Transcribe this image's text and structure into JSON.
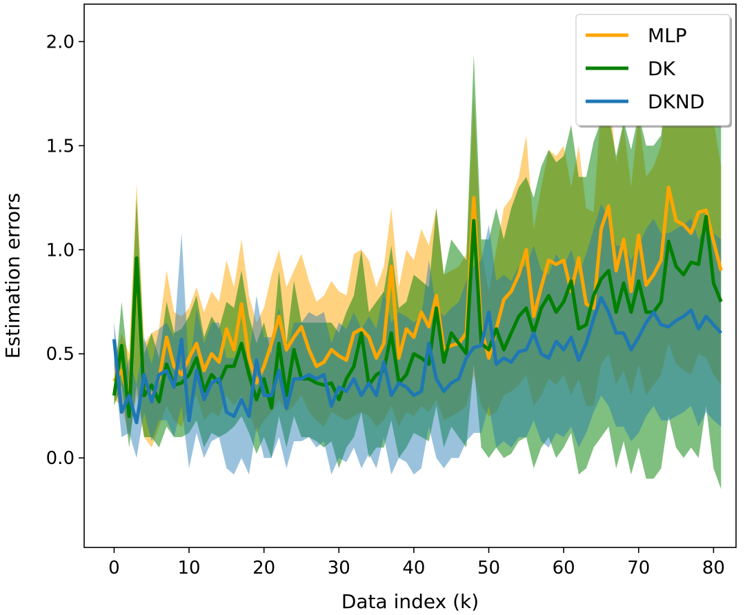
{
  "chart_data": {
    "type": "line",
    "xlabel": "Data index (k)",
    "ylabel": "Estimation errors",
    "xlim": [
      -4,
      83
    ],
    "ylim": [
      -0.43,
      2.18
    ],
    "xticks": [
      0,
      10,
      20,
      30,
      40,
      50,
      60,
      70,
      80
    ],
    "yticks": [
      0.0,
      0.5,
      1.0,
      1.5,
      2.0
    ],
    "grid": false,
    "legend": {
      "position": "top-right"
    },
    "x": [
      0,
      1,
      2,
      3,
      4,
      5,
      6,
      7,
      8,
      9,
      10,
      11,
      12,
      13,
      14,
      15,
      16,
      17,
      18,
      19,
      20,
      21,
      22,
      23,
      24,
      25,
      26,
      27,
      28,
      29,
      30,
      31,
      32,
      33,
      34,
      35,
      36,
      37,
      38,
      39,
      40,
      41,
      42,
      43,
      44,
      45,
      46,
      47,
      48,
      49,
      50,
      51,
      52,
      53,
      54,
      55,
      56,
      57,
      58,
      59,
      60,
      61,
      62,
      63,
      64,
      65,
      66,
      67,
      68,
      69,
      70,
      71,
      72,
      73,
      74,
      75,
      76,
      77,
      78,
      79,
      80,
      81
    ],
    "series": [
      {
        "name": "MLP",
        "color": "#ffa500",
        "band_opacity": 0.5,
        "values": [
          0.37,
          0.42,
          0.28,
          0.9,
          0.33,
          0.3,
          0.38,
          0.58,
          0.44,
          0.4,
          0.48,
          0.55,
          0.42,
          0.5,
          0.46,
          0.62,
          0.52,
          0.74,
          0.48,
          0.36,
          0.44,
          0.55,
          0.68,
          0.52,
          0.58,
          0.63,
          0.52,
          0.44,
          0.46,
          0.52,
          0.49,
          0.47,
          0.6,
          0.62,
          0.58,
          0.48,
          0.55,
          0.92,
          0.48,
          0.62,
          0.58,
          0.7,
          0.63,
          0.78,
          0.52,
          0.54,
          0.55,
          0.6,
          1.25,
          0.62,
          0.48,
          0.62,
          0.76,
          0.8,
          0.88,
          1.0,
          0.68,
          0.82,
          0.95,
          0.93,
          0.95,
          0.8,
          0.96,
          0.74,
          0.72,
          1.1,
          1.21,
          0.9,
          1.05,
          0.8,
          1.07,
          0.83,
          0.88,
          0.95,
          1.3,
          1.14,
          1.12,
          1.08,
          1.18,
          1.19,
          1.04,
          0.9
        ],
        "lower": [
          0.28,
          0.25,
          0.1,
          0.3,
          0.1,
          0.05,
          0.15,
          0.25,
          0.18,
          0.15,
          0.25,
          0.3,
          0.18,
          0.22,
          0.2,
          0.3,
          0.25,
          0.3,
          0.22,
          0.12,
          0.18,
          0.22,
          0.28,
          0.22,
          0.25,
          0.3,
          0.22,
          0.18,
          0.15,
          0.22,
          0.2,
          0.18,
          0.2,
          0.22,
          0.2,
          0.15,
          0.18,
          0.25,
          0.15,
          0.22,
          0.2,
          0.25,
          0.22,
          0.28,
          0.18,
          0.2,
          0.22,
          0.25,
          0.4,
          0.25,
          0.2,
          0.22,
          0.3,
          0.32,
          0.35,
          0.4,
          0.25,
          0.3,
          0.38,
          0.35,
          0.4,
          0.3,
          0.38,
          0.25,
          0.25,
          0.45,
          0.5,
          0.35,
          0.42,
          0.3,
          0.45,
          0.3,
          0.35,
          0.4,
          0.55,
          0.45,
          0.42,
          0.4,
          0.5,
          0.48,
          0.4,
          0.35
        ],
        "upper": [
          0.45,
          0.6,
          0.5,
          1.32,
          0.55,
          0.6,
          0.62,
          0.9,
          0.7,
          0.68,
          0.72,
          0.82,
          0.7,
          0.8,
          0.75,
          0.95,
          0.82,
          1.05,
          0.78,
          0.65,
          0.72,
          0.88,
          1.0,
          0.82,
          0.9,
          0.98,
          0.85,
          0.75,
          0.78,
          0.85,
          0.8,
          0.78,
          0.98,
          1.0,
          0.95,
          0.82,
          0.92,
          1.2,
          0.82,
          1.0,
          0.95,
          1.1,
          1.02,
          1.2,
          0.88,
          0.9,
          0.92,
          0.98,
          1.75,
          1.0,
          0.8,
          1.0,
          1.2,
          1.25,
          1.35,
          1.55,
          1.1,
          1.3,
          1.48,
          1.45,
          1.5,
          1.3,
          1.5,
          1.2,
          1.18,
          1.7,
          1.78,
          1.42,
          1.6,
          1.3,
          1.65,
          1.35,
          1.4,
          1.5,
          1.95,
          1.75,
          1.72,
          1.68,
          1.8,
          1.82,
          1.62,
          1.4
        ]
      },
      {
        "name": "DK",
        "color": "#008000",
        "band_opacity": 0.5,
        "values": [
          0.3,
          0.54,
          0.2,
          0.96,
          0.3,
          0.35,
          0.27,
          0.45,
          0.35,
          0.36,
          0.4,
          0.48,
          0.32,
          0.4,
          0.36,
          0.44,
          0.44,
          0.55,
          0.4,
          0.28,
          0.38,
          0.24,
          0.55,
          0.3,
          0.52,
          0.38,
          0.38,
          0.36,
          0.35,
          0.36,
          0.28,
          0.38,
          0.44,
          0.6,
          0.35,
          0.4,
          0.42,
          0.6,
          0.36,
          0.4,
          0.5,
          0.48,
          0.45,
          0.72,
          0.46,
          0.6,
          0.55,
          0.5,
          1.14,
          0.55,
          0.52,
          0.62,
          0.52,
          0.6,
          0.68,
          0.72,
          0.6,
          0.72,
          0.78,
          0.7,
          0.75,
          0.85,
          0.62,
          0.64,
          0.78,
          0.86,
          0.9,
          0.7,
          0.84,
          0.7,
          0.85,
          0.7,
          0.7,
          0.75,
          1.04,
          0.92,
          0.88,
          0.94,
          0.93,
          1.16,
          0.84,
          0.75
        ],
        "lower": [
          0.25,
          0.35,
          0.05,
          0.35,
          0.1,
          0.1,
          0.05,
          0.15,
          0.1,
          0.1,
          0.12,
          0.18,
          0.05,
          0.12,
          0.1,
          0.12,
          0.15,
          0.2,
          0.12,
          0.02,
          0.1,
          0.0,
          0.2,
          0.05,
          0.2,
          0.1,
          0.1,
          0.08,
          0.05,
          0.08,
          -0.05,
          0.05,
          0.1,
          0.22,
          0.0,
          0.05,
          0.05,
          0.18,
          0.0,
          0.05,
          0.12,
          0.1,
          0.08,
          0.25,
          0.05,
          0.15,
          0.1,
          0.05,
          0.45,
          0.05,
          0.0,
          0.05,
          0.0,
          0.02,
          0.08,
          0.1,
          -0.05,
          0.05,
          0.1,
          0.0,
          0.05,
          0.12,
          -0.08,
          -0.05,
          0.05,
          0.1,
          0.15,
          -0.05,
          0.08,
          -0.08,
          0.05,
          -0.1,
          -0.1,
          -0.05,
          0.2,
          0.05,
          0.0,
          0.05,
          0.0,
          0.25,
          -0.05,
          -0.15
        ],
        "upper": [
          0.35,
          0.75,
          0.4,
          1.25,
          0.5,
          0.6,
          0.48,
          0.75,
          0.6,
          0.62,
          0.68,
          0.78,
          0.58,
          0.68,
          0.62,
          0.75,
          0.72,
          0.9,
          0.68,
          0.55,
          0.65,
          0.5,
          0.9,
          0.55,
          0.85,
          0.65,
          0.65,
          0.65,
          0.65,
          0.65,
          0.6,
          0.7,
          0.78,
          1.0,
          0.7,
          0.75,
          0.8,
          1.02,
          0.72,
          0.75,
          0.88,
          0.85,
          0.82,
          1.2,
          0.88,
          1.05,
          1.0,
          0.95,
          1.94,
          1.05,
          1.05,
          1.2,
          1.05,
          1.2,
          1.3,
          1.35,
          1.25,
          1.4,
          1.48,
          1.42,
          1.45,
          1.6,
          1.35,
          1.35,
          1.52,
          1.62,
          1.65,
          1.45,
          1.62,
          1.48,
          1.65,
          1.5,
          1.5,
          1.55,
          1.9,
          1.8,
          1.75,
          1.82,
          1.85,
          2.05,
          1.72,
          1.6
        ]
      },
      {
        "name": "DKND",
        "color": "#1f77b4",
        "band_opacity": 0.45,
        "values": [
          0.57,
          0.22,
          0.3,
          0.17,
          0.4,
          0.27,
          0.4,
          0.42,
          0.34,
          0.57,
          0.18,
          0.42,
          0.28,
          0.36,
          0.38,
          0.22,
          0.2,
          0.28,
          0.2,
          0.47,
          0.3,
          0.3,
          0.42,
          0.24,
          0.38,
          0.38,
          0.4,
          0.38,
          0.4,
          0.25,
          0.34,
          0.32,
          0.38,
          0.3,
          0.36,
          0.3,
          0.46,
          0.3,
          0.36,
          0.34,
          0.3,
          0.32,
          0.55,
          0.38,
          0.32,
          0.36,
          0.38,
          0.48,
          0.53,
          0.54,
          0.7,
          0.45,
          0.48,
          0.46,
          0.51,
          0.52,
          0.6,
          0.5,
          0.48,
          0.56,
          0.52,
          0.58,
          0.47,
          0.55,
          0.67,
          0.77,
          0.7,
          0.6,
          0.6,
          0.52,
          0.58,
          0.65,
          0.7,
          0.64,
          0.63,
          0.66,
          0.68,
          0.71,
          0.62,
          0.68,
          0.64,
          0.6
        ],
        "lower": [
          0.45,
          0.1,
          0.12,
          0.0,
          0.22,
          0.08,
          0.18,
          0.18,
          0.1,
          0.25,
          -0.05,
          0.12,
          0.0,
          0.08,
          0.1,
          -0.05,
          -0.08,
          0.0,
          -0.08,
          0.15,
          0.0,
          0.0,
          0.1,
          -0.05,
          0.08,
          0.08,
          0.1,
          0.05,
          0.08,
          -0.08,
          0.0,
          -0.02,
          0.05,
          -0.05,
          0.02,
          -0.05,
          0.1,
          -0.08,
          0.0,
          -0.02,
          -0.08,
          -0.05,
          0.15,
          0.0,
          -0.05,
          0.0,
          0.0,
          0.08,
          0.12,
          0.12,
          0.25,
          0.05,
          0.08,
          0.05,
          0.1,
          0.1,
          0.18,
          0.08,
          0.05,
          0.12,
          0.1,
          0.15,
          0.05,
          0.12,
          0.22,
          0.3,
          0.25,
          0.15,
          0.15,
          0.08,
          0.12,
          0.2,
          0.25,
          0.18,
          0.18,
          0.2,
          0.22,
          0.25,
          0.15,
          0.22,
          0.18,
          0.15
        ],
        "upper": [
          0.65,
          0.35,
          0.48,
          0.35,
          0.58,
          0.45,
          0.62,
          0.65,
          0.58,
          1.08,
          0.4,
          0.72,
          0.55,
          0.65,
          0.65,
          0.48,
          0.48,
          0.55,
          0.48,
          0.78,
          0.58,
          0.58,
          0.72,
          0.5,
          0.65,
          0.65,
          0.7,
          0.68,
          0.7,
          0.55,
          0.65,
          0.62,
          0.7,
          0.62,
          0.68,
          0.62,
          0.8,
          0.65,
          0.7,
          0.68,
          0.65,
          0.68,
          0.95,
          0.72,
          0.68,
          0.72,
          0.75,
          0.85,
          0.92,
          0.95,
          1.12,
          0.85,
          0.88,
          0.85,
          0.92,
          0.92,
          1.02,
          0.9,
          0.88,
          0.98,
          0.92,
          1.0,
          0.88,
          0.98,
          1.1,
          1.22,
          1.15,
          1.02,
          1.02,
          0.95,
          1.02,
          1.1,
          1.15,
          1.08,
          1.08,
          1.1,
          1.12,
          1.15,
          1.05,
          1.12,
          1.08,
          1.05
        ]
      }
    ]
  }
}
